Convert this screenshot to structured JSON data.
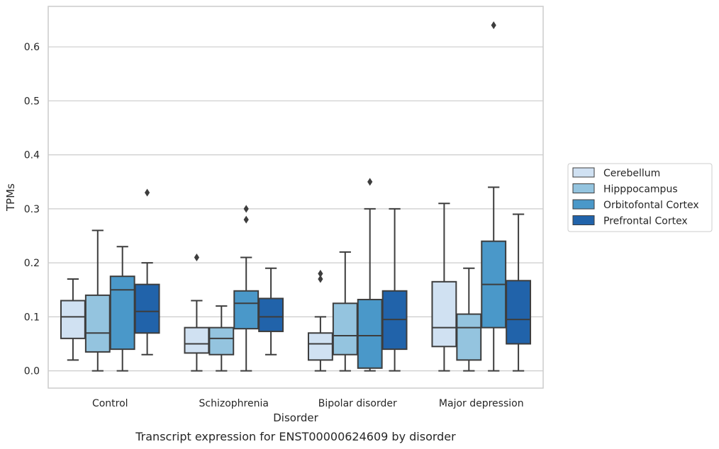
{
  "caption": "Transcript expression for ENST00000624609 by disorder",
  "chart_data": {
    "type": "box",
    "xlabel": "Disorder",
    "ylabel": "TPMs",
    "ylim": [
      -0.032,
      0.675
    ],
    "yticks": [
      "0.0",
      "0.1",
      "0.2",
      "0.3",
      "0.4",
      "0.5",
      "0.6"
    ],
    "grid": "horizontal",
    "legend_position": "right",
    "categories": [
      "Control",
      "Schizophrenia",
      "Bipolar disorder",
      "Major depression"
    ],
    "series": [
      {
        "name": "Cerebellum",
        "color": "#d0e1f2",
        "boxes": [
          {
            "whislo": 0.02,
            "q1": 0.06,
            "med": 0.1,
            "q3": 0.13,
            "whishi": 0.17,
            "fliers": []
          },
          {
            "whislo": 0.0,
            "q1": 0.033,
            "med": 0.05,
            "q3": 0.08,
            "whishi": 0.13,
            "fliers": [
              0.21
            ]
          },
          {
            "whislo": 0.0,
            "q1": 0.02,
            "med": 0.05,
            "q3": 0.07,
            "whishi": 0.1,
            "fliers": [
              0.17,
              0.18
            ]
          },
          {
            "whislo": 0.0,
            "q1": 0.045,
            "med": 0.08,
            "q3": 0.165,
            "whishi": 0.31,
            "fliers": []
          }
        ]
      },
      {
        "name": "Hipppocampus",
        "color": "#94c4df",
        "boxes": [
          {
            "whislo": 0.0,
            "q1": 0.035,
            "med": 0.07,
            "q3": 0.14,
            "whishi": 0.26,
            "fliers": []
          },
          {
            "whislo": 0.0,
            "q1": 0.03,
            "med": 0.06,
            "q3": 0.08,
            "whishi": 0.12,
            "fliers": []
          },
          {
            "whislo": 0.0,
            "q1": 0.03,
            "med": 0.065,
            "q3": 0.125,
            "whishi": 0.22,
            "fliers": []
          },
          {
            "whislo": 0.0,
            "q1": 0.02,
            "med": 0.08,
            "q3": 0.105,
            "whishi": 0.19,
            "fliers": []
          }
        ]
      },
      {
        "name": "Orbitofontal Cortex",
        "color": "#4a98c9",
        "boxes": [
          {
            "whislo": 0.0,
            "q1": 0.04,
            "med": 0.15,
            "q3": 0.175,
            "whishi": 0.23,
            "fliers": []
          },
          {
            "whislo": 0.0,
            "q1": 0.078,
            "med": 0.125,
            "q3": 0.148,
            "whishi": 0.21,
            "fliers": [
              0.28,
              0.3
            ]
          },
          {
            "whislo": 0.0,
            "q1": 0.005,
            "med": 0.065,
            "q3": 0.132,
            "whishi": 0.3,
            "fliers": [
              0.35
            ]
          },
          {
            "whislo": 0.0,
            "q1": 0.08,
            "med": 0.16,
            "q3": 0.24,
            "whishi": 0.34,
            "fliers": [
              0.64
            ]
          }
        ]
      },
      {
        "name": "Prefrontal Cortex",
        "color": "#2163aa",
        "boxes": [
          {
            "whislo": 0.03,
            "q1": 0.07,
            "med": 0.11,
            "q3": 0.16,
            "whishi": 0.2,
            "fliers": [
              0.33
            ]
          },
          {
            "whislo": 0.03,
            "q1": 0.073,
            "med": 0.1,
            "q3": 0.134,
            "whishi": 0.19,
            "fliers": []
          },
          {
            "whislo": 0.0,
            "q1": 0.04,
            "med": 0.095,
            "q3": 0.148,
            "whishi": 0.3,
            "fliers": []
          },
          {
            "whislo": 0.0,
            "q1": 0.05,
            "med": 0.095,
            "q3": 0.167,
            "whishi": 0.29,
            "fliers": []
          }
        ]
      }
    ]
  }
}
